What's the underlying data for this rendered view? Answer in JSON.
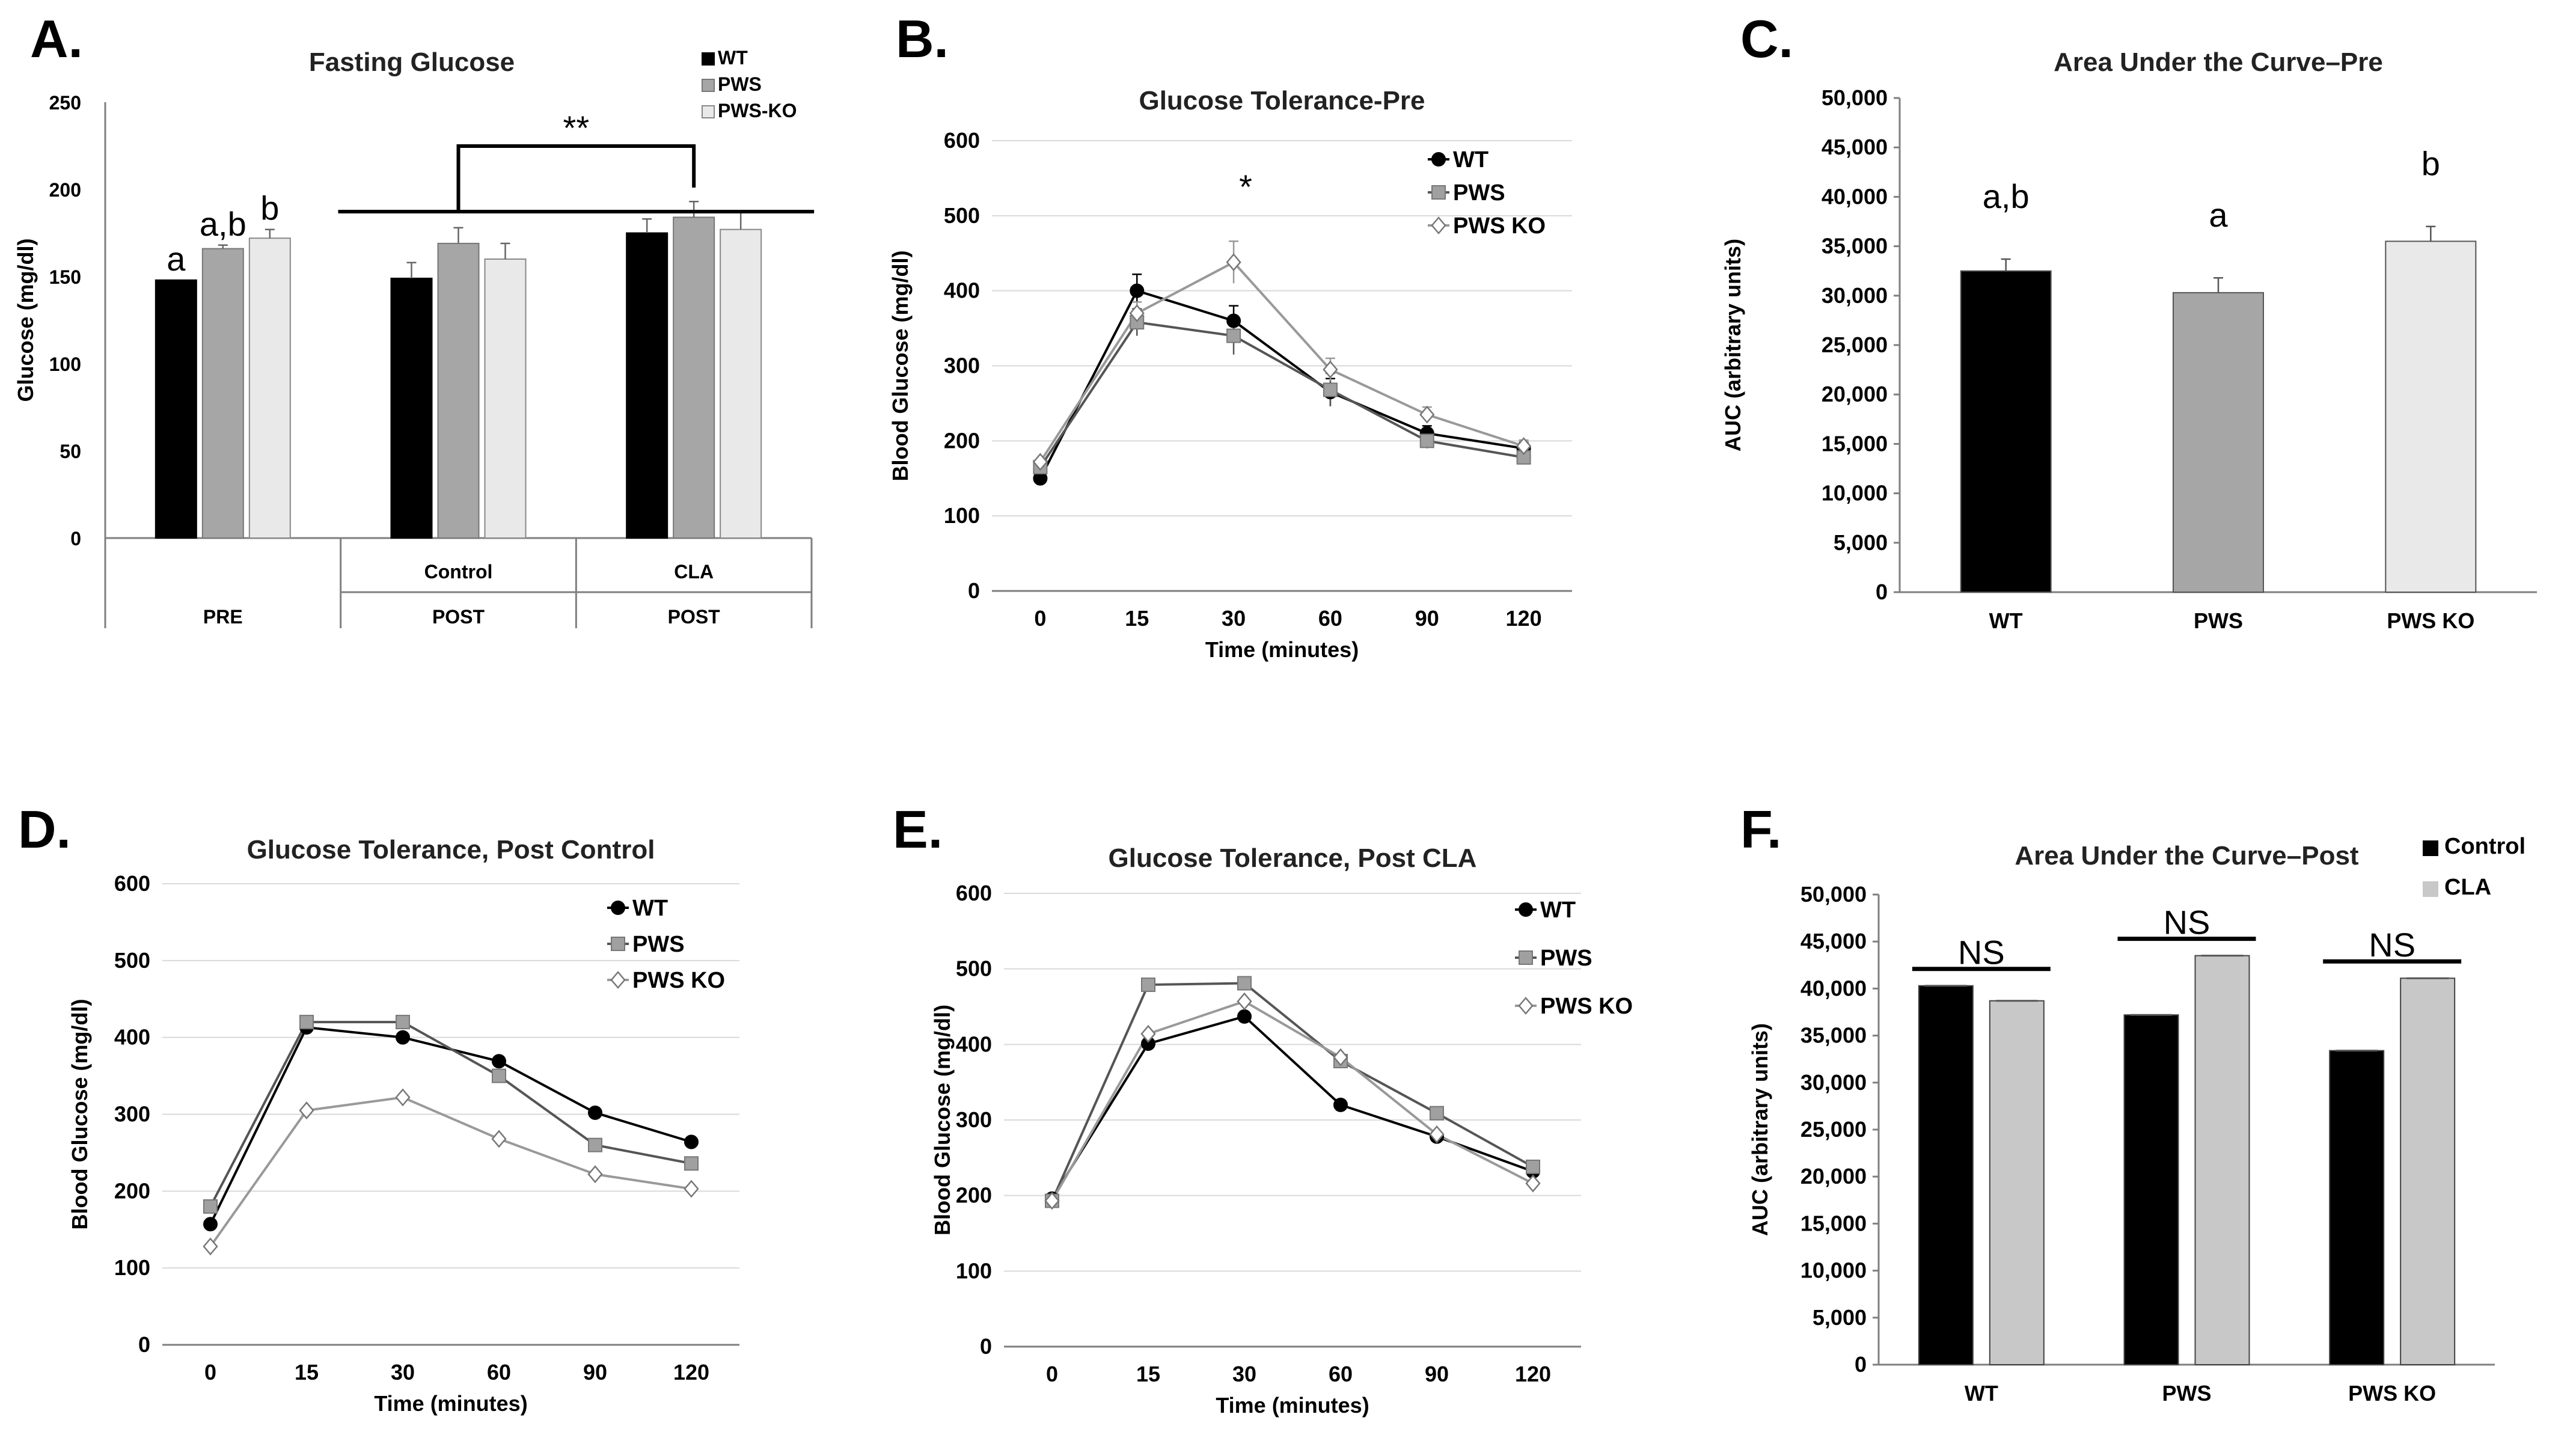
{
  "colors": {
    "wt": "#000000",
    "pws": "#a6a6a6",
    "pwsko": "#e9e9e9",
    "pws_line": "#555555",
    "pwsko_line": "#999999",
    "cla": "#c8c8c8"
  },
  "chart_data": [
    {
      "id": "A",
      "panel_label": "A.",
      "type": "bar",
      "title": "Fasting Glucose",
      "ylabel": "Glucose (mg/dl)",
      "ylim": [
        0,
        250
      ],
      "yticks": [
        "0",
        "50",
        "100",
        "150",
        "200",
        "250"
      ],
      "legend": [
        "WT",
        "PWS",
        "PWS-KO"
      ],
      "groups": [
        {
          "label_top": "",
          "label_bottom": "PRE",
          "values": [
            148,
            166,
            172
          ],
          "errors": [
            0,
            2,
            5
          ],
          "letters": [
            "a",
            "a,b",
            "b"
          ]
        },
        {
          "label_top": "Control",
          "label_bottom": "POST",
          "values": [
            149,
            169,
            160
          ],
          "errors": [
            9,
            9,
            9
          ],
          "letters": [
            "",
            "",
            ""
          ]
        },
        {
          "label_top": "CLA",
          "label_bottom": "POST",
          "values": [
            175,
            184,
            177
          ],
          "errors": [
            8,
            9,
            10
          ],
          "letters": [
            "",
            "",
            ""
          ]
        }
      ],
      "annotation": "**"
    },
    {
      "id": "B",
      "panel_label": "B.",
      "type": "line",
      "title": "Glucose Tolerance-Pre",
      "xlabel": "Time (minutes)",
      "ylabel": "Blood Glucose (mg/dl)",
      "x": [
        "0",
        "15",
        "30",
        "60",
        "90",
        "120"
      ],
      "ylim": [
        0,
        600
      ],
      "yticks": [
        "0",
        "100",
        "200",
        "300",
        "400",
        "500",
        "600"
      ],
      "series": [
        {
          "name": "WT",
          "values": [
            150,
            400,
            360,
            265,
            210,
            190
          ],
          "errors": [
            0,
            22,
            20,
            18,
            10,
            8
          ]
        },
        {
          "name": "PWS",
          "values": [
            165,
            358,
            340,
            268,
            200,
            178
          ],
          "errors": [
            0,
            18,
            25,
            22,
            10,
            8
          ]
        },
        {
          "name": "PWS KO",
          "values": [
            172,
            370,
            438,
            295,
            235,
            193
          ],
          "errors": [
            0,
            15,
            28,
            15,
            10,
            8
          ]
        }
      ],
      "annotation": "*"
    },
    {
      "id": "C",
      "panel_label": "C.",
      "type": "bar",
      "title": "Area Under the Curve–Pre",
      "ylabel": "AUC (arbitrary units)",
      "ylim": [
        0,
        50000
      ],
      "yticks": [
        "0",
        "5,000",
        "10,000",
        "15,000",
        "20,000",
        "25,000",
        "30,000",
        "35,000",
        "40,000",
        "45,000",
        "50,000"
      ],
      "categories": [
        "WT",
        "PWS",
        "PWS KO"
      ],
      "values": [
        32500,
        30300,
        35500
      ],
      "errors": [
        1200,
        1500,
        1500
      ],
      "letters": [
        "a,b",
        "a",
        "b"
      ]
    },
    {
      "id": "D",
      "panel_label": "D.",
      "type": "line",
      "title": "Glucose Tolerance, Post Control",
      "xlabel": "Time (minutes)",
      "ylabel": "Blood Glucose (mg/dl)",
      "x": [
        "0",
        "15",
        "30",
        "60",
        "90",
        "120"
      ],
      "ylim": [
        0,
        600
      ],
      "yticks": [
        "0",
        "100",
        "200",
        "300",
        "400",
        "500",
        "600"
      ],
      "series": [
        {
          "name": "WT",
          "values": [
            157,
            413,
            400,
            369,
            302,
            264
          ]
        },
        {
          "name": "PWS",
          "values": [
            180,
            420,
            420,
            350,
            260,
            236
          ]
        },
        {
          "name": "PWS KO",
          "values": [
            128,
            305,
            322,
            268,
            222,
            203
          ]
        }
      ]
    },
    {
      "id": "E",
      "panel_label": "E.",
      "type": "line",
      "title": "Glucose Tolerance, Post CLA",
      "xlabel": "Time (minutes)",
      "ylabel": "Blood Glucose (mg/dl)",
      "x": [
        "0",
        "15",
        "30",
        "60",
        "90",
        "120"
      ],
      "ylim": [
        0,
        600
      ],
      "yticks": [
        "0",
        "100",
        "200",
        "300",
        "400",
        "500",
        "600"
      ],
      "series": [
        {
          "name": "WT",
          "values": [
            196,
            401,
            437,
            320,
            278,
            232
          ]
        },
        {
          "name": "PWS",
          "values": [
            193,
            479,
            481,
            378,
            309,
            238
          ]
        },
        {
          "name": "PWS KO",
          "values": [
            193,
            414,
            457,
            383,
            281,
            216
          ]
        }
      ]
    },
    {
      "id": "F",
      "panel_label": "F.",
      "type": "bar",
      "title": "Area Under the Curve–Post",
      "ylabel": "AUC (arbitrary units)",
      "ylim": [
        0,
        50000
      ],
      "yticks": [
        "0",
        "5,000",
        "10,000",
        "15,000",
        "20,000",
        "25,000",
        "30,000",
        "35,000",
        "40,000",
        "45,000",
        "50,000"
      ],
      "categories": [
        "WT",
        "PWS",
        "PWS KO"
      ],
      "series": [
        {
          "name": "Control",
          "values": [
            40300,
            37200,
            33400
          ]
        },
        {
          "name": "CLA",
          "values": [
            38700,
            43500,
            41100
          ]
        }
      ],
      "annotations": [
        "NS",
        "NS",
        "NS"
      ]
    }
  ]
}
